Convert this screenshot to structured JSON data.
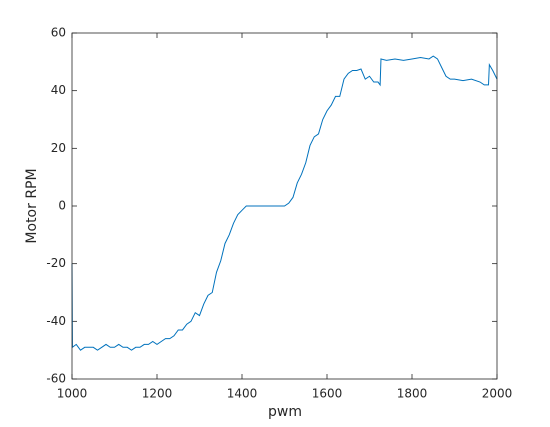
{
  "chart_data": {
    "type": "line",
    "xlabel": "pwm",
    "ylabel": "Motor RPM",
    "xlim": [
      1000,
      2000
    ],
    "xticks": [
      1000,
      1200,
      1400,
      1600,
      1800,
      2000
    ],
    "ylim": [
      -60,
      60
    ],
    "yticks": [
      -60,
      -40,
      -20,
      0,
      20,
      40,
      60
    ],
    "grid": false,
    "series": [
      {
        "color": "#0072bd",
        "x": [
          1000,
          1001,
          1010,
          1020,
          1030,
          1040,
          1050,
          1060,
          1070,
          1080,
          1090,
          1100,
          1110,
          1120,
          1130,
          1140,
          1150,
          1160,
          1170,
          1180,
          1190,
          1200,
          1210,
          1220,
          1230,
          1240,
          1250,
          1260,
          1270,
          1280,
          1290,
          1300,
          1310,
          1320,
          1330,
          1340,
          1350,
          1360,
          1370,
          1380,
          1390,
          1400,
          1410,
          1420,
          1450,
          1480,
          1500,
          1510,
          1520,
          1530,
          1540,
          1550,
          1560,
          1570,
          1580,
          1590,
          1600,
          1610,
          1620,
          1630,
          1640,
          1650,
          1660,
          1670,
          1680,
          1690,
          1700,
          1710,
          1720,
          1725,
          1727,
          1740,
          1760,
          1780,
          1800,
          1820,
          1840,
          1850,
          1860,
          1870,
          1880,
          1890,
          1900,
          1920,
          1940,
          1960,
          1970,
          1980,
          1982,
          1990,
          2000
        ],
        "values": [
          -20,
          -49,
          -48,
          -50,
          -49,
          -49,
          -49,
          -50,
          -49,
          -48,
          -49,
          -49,
          -48,
          -49,
          -49,
          -50,
          -49,
          -49,
          -48,
          -48,
          -47,
          -48,
          -47,
          -46,
          -46,
          -45,
          -43,
          -43,
          -41,
          -40,
          -37,
          -38,
          -34,
          -31,
          -30,
          -23,
          -19,
          -13,
          -10,
          -6,
          -3,
          -1.5,
          0,
          0,
          0,
          0,
          0,
          1,
          3,
          8,
          11,
          15,
          21,
          24,
          25,
          30,
          33,
          35,
          38,
          38,
          44,
          46,
          47,
          47,
          47.5,
          44,
          45,
          43,
          43,
          42,
          51,
          50.5,
          51,
          50.5,
          51,
          51.5,
          51,
          52,
          51,
          48,
          45,
          44,
          44,
          43.5,
          44,
          43,
          42,
          42,
          49,
          47,
          44
        ]
      }
    ]
  }
}
